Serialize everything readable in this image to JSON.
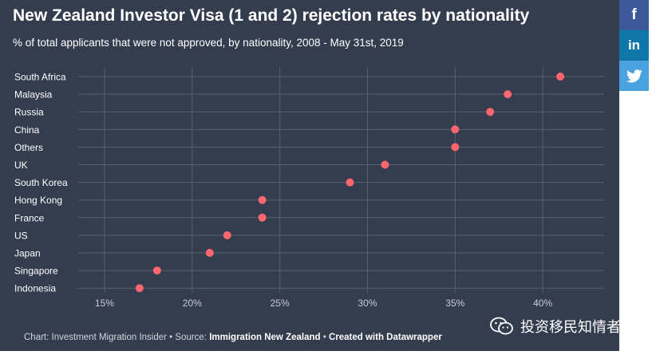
{
  "title": "New Zealand Investor Visa (1 and 2) rejection rates by nationality",
  "subtitle": "% of total applicants that were not approved, by nationality, 2008 - May 31st, 2019",
  "footer": {
    "prefix": "Chart: Investment Migration Insider • Source: ",
    "source": "Immigration New Zealand",
    "separator": " • ",
    "credit": "Created with Datawrapper"
  },
  "share": {
    "facebook": "f",
    "linkedin": "in"
  },
  "watermark": "投资移民知情者",
  "colors": {
    "background": "#333d4e",
    "dot": "#ff6670",
    "grid": "#56606f"
  },
  "chart_data": {
    "type": "scatter",
    "title": "New Zealand Investor Visa (1 and 2) rejection rates by nationality",
    "subtitle": "% of total applicants that were not approved, by nationality, 2008 - May 31st, 2019",
    "categories": [
      "South Africa",
      "Malaysia",
      "Russia",
      "China",
      "Others",
      "UK",
      "South Korea",
      "Hong Kong",
      "France",
      "US",
      "Japan",
      "Singapore",
      "Indonesia"
    ],
    "values": [
      41,
      38,
      37,
      35,
      35,
      31,
      29,
      24,
      24,
      22,
      21,
      18,
      17
    ],
    "xlim": [
      13.5,
      43.5
    ],
    "xticks": [
      15,
      20,
      25,
      30,
      35,
      40
    ],
    "xtick_labels": [
      "15%",
      "20%",
      "25%",
      "30%",
      "35%",
      "40%"
    ],
    "xlabel": "",
    "ylabel": "",
    "grid": true
  }
}
